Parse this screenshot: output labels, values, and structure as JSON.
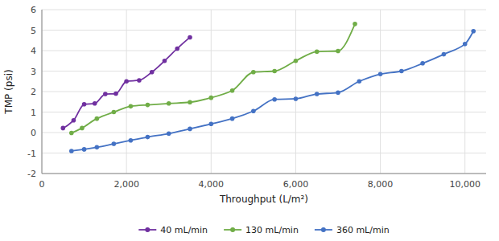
{
  "chart_data": {
    "type": "line",
    "marker": "circle",
    "grid": true,
    "legend": "bottom",
    "xlabel": "Throughput (L/m²)",
    "ylabel": "TMP (psi)",
    "xlim": [
      0,
      10500
    ],
    "ylim": [
      -2,
      6
    ],
    "xticks": [
      0,
      {
        "value": 2000,
        "label": "2,000"
      },
      {
        "value": 4000,
        "label": "4,000"
      },
      {
        "value": 6000,
        "label": "6,000"
      },
      {
        "value": 8000,
        "label": "8,000"
      },
      {
        "value": 10000,
        "label": "10,000"
      }
    ],
    "yticks": [
      -2,
      -1,
      0,
      1,
      2,
      3,
      4,
      5,
      6
    ],
    "series": [
      {
        "name": "40 mL/min",
        "color": "#7030A0",
        "x": [
          500,
          750,
          1000,
          1250,
          1500,
          1750,
          2000,
          2300,
          2600,
          2900,
          3200,
          3500
        ],
        "values": [
          0.22,
          0.6,
          1.38,
          1.42,
          1.88,
          1.9,
          2.5,
          2.55,
          2.95,
          3.5,
          4.1,
          4.65
        ]
      },
      {
        "name": "130 mL/min",
        "color": "#70AD47",
        "x": [
          700,
          950,
          1300,
          1700,
          2100,
          2500,
          3000,
          3500,
          4000,
          4500,
          5000,
          5500,
          6000,
          6500,
          7000,
          7400
        ],
        "values": [
          -0.02,
          0.22,
          0.68,
          1.0,
          1.28,
          1.35,
          1.42,
          1.48,
          1.7,
          2.05,
          2.95,
          3.0,
          3.5,
          3.95,
          3.98,
          5.3
        ]
      },
      {
        "name": "360 mL/min",
        "color": "#4472C4",
        "x": [
          700,
          1000,
          1300,
          1700,
          2100,
          2500,
          3000,
          3500,
          4000,
          4500,
          5000,
          5500,
          6000,
          6500,
          7000,
          7500,
          8000,
          8500,
          9000,
          9500,
          10000,
          10200
        ],
        "values": [
          -0.9,
          -0.82,
          -0.72,
          -0.55,
          -0.38,
          -0.22,
          -0.05,
          0.18,
          0.42,
          0.68,
          1.05,
          1.62,
          1.65,
          1.88,
          1.95,
          2.5,
          2.85,
          3.0,
          3.38,
          3.82,
          4.32,
          4.95
        ]
      }
    ]
  }
}
